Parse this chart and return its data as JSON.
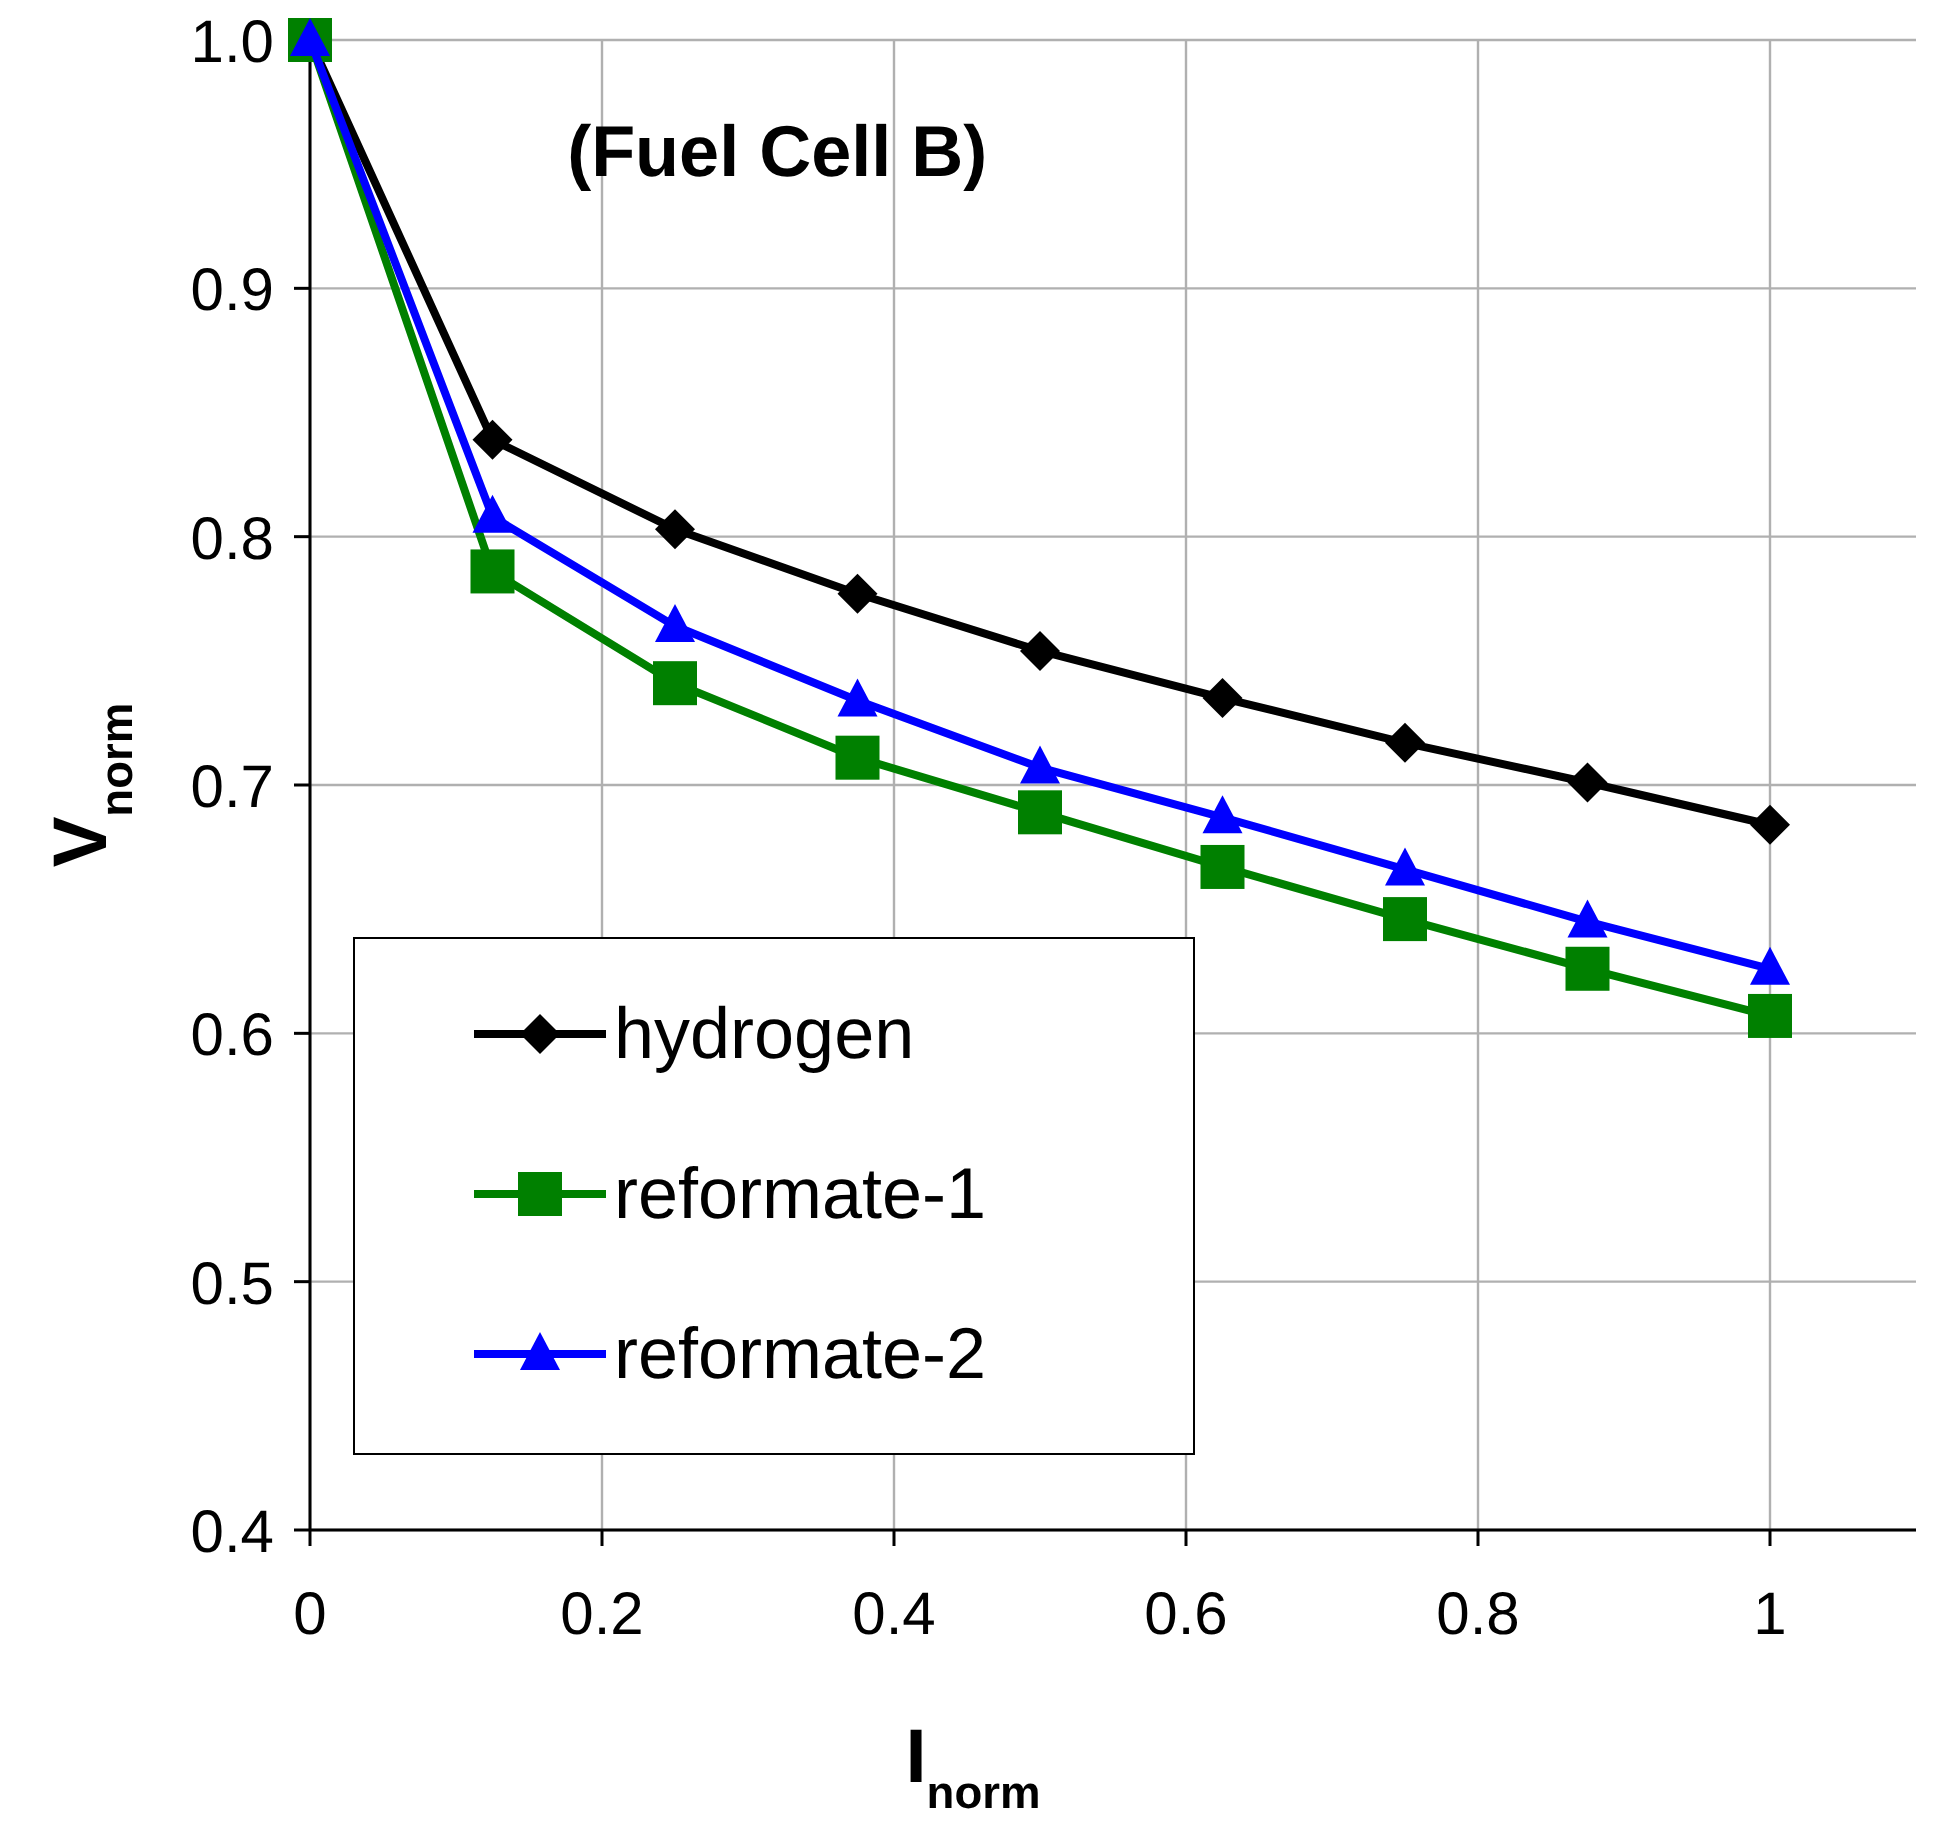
{
  "chart_data": {
    "type": "line",
    "title": "(Fuel Cell B)",
    "xlabel": "I$_{norm}$",
    "ylabel": "V$_{norm}$",
    "x": [
      0,
      0.125,
      0.25,
      0.375,
      0.5,
      0.625,
      0.75,
      0.875,
      1
    ],
    "series": [
      {
        "name": "hydrogen",
        "color": "#000000",
        "marker": "diamond",
        "values": [
          1.0,
          0.839,
          0.803,
          0.777,
          0.754,
          0.735,
          0.717,
          0.701,
          0.684
        ]
      },
      {
        "name": "reformate-1",
        "color": "#008000",
        "marker": "square",
        "values": [
          1.0,
          0.786,
          0.741,
          0.711,
          0.689,
          0.667,
          0.646,
          0.626,
          0.607
        ]
      },
      {
        "name": "reformate-2",
        "color": "#0000ff",
        "marker": "triangle",
        "values": [
          1.0,
          0.808,
          0.764,
          0.734,
          0.707,
          0.687,
          0.666,
          0.645,
          0.626
        ]
      }
    ],
    "xlim": [
      0,
      1.1
    ],
    "xticks": [
      0,
      0.2,
      0.4,
      0.6,
      0.8,
      1
    ],
    "ylim": [
      0.4,
      1.0
    ],
    "yticks": [
      {
        "value": 0.4,
        "label": "0.4"
      },
      {
        "value": 0.5,
        "label": "0.5"
      },
      {
        "value": 0.6,
        "label": "0.6"
      },
      {
        "value": 0.7,
        "label": "0.7"
      },
      {
        "value": 0.8,
        "label": "0.8"
      },
      {
        "value": 0.9,
        "label": "0.9"
      },
      {
        "value": 1.0,
        "label": "1.0"
      }
    ],
    "grid": true,
    "legend": "bottom left",
    "line_style": "solid"
  }
}
